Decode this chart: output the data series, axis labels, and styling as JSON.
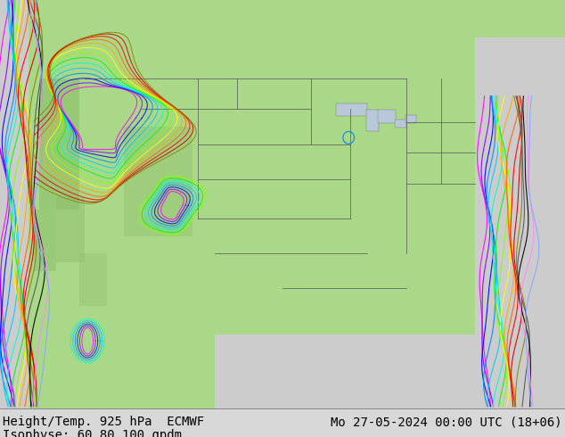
{
  "title": "",
  "bottom_left_line1": "Height/Temp. 925 hPa  ECMWF",
  "bottom_left_line2": "Isophyse: 60 80 100 gpdm",
  "bottom_right": "Mo 27-05-2024 00:00 UTC (18+06)",
  "bg_color": "#c8c8c8",
  "map_land_color": "#a8d888",
  "map_ocean_color": "#cccccc",
  "text_color": "#000000",
  "font_size_bottom": 10,
  "fig_width": 6.34,
  "fig_height": 4.9,
  "dpi": 100,
  "contour_colors": [
    "#ff00ff",
    "#8800ff",
    "#0000ff",
    "#0088ff",
    "#00ccff",
    "#00ffcc",
    "#00ff00",
    "#88ff00",
    "#ffff00",
    "#ffaa00",
    "#ff6600",
    "#ff0000",
    "#cc0000",
    "#888800",
    "#555555",
    "#000000",
    "#ff88ff",
    "#88aaff"
  ]
}
